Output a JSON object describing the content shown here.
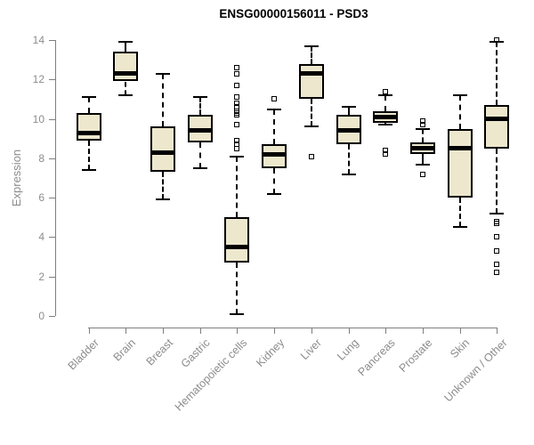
{
  "colors": {
    "box_fill": "#EDE7CD",
    "box_border": "#000000",
    "axis_line": "#7f7f7f",
    "axis_text": "#8c8c8c",
    "title_text": "#000000",
    "background": "#ffffff"
  },
  "chart_data": {
    "type": "boxplot",
    "title": "ENSG00000156011 - PSD3",
    "ylabel": "Expression",
    "xlabel": "",
    "ylim": [
      0,
      14
    ],
    "yticks": [
      0,
      2,
      4,
      6,
      8,
      10,
      12,
      14
    ],
    "grid": false,
    "legend": "none",
    "categories": [
      "Bladder",
      "Brain",
      "Breast",
      "Gastric",
      "Hematopoietic cells",
      "Kidney",
      "Liver",
      "Lung",
      "Pancreas",
      "Prostate",
      "Skin",
      "Unknown / Other"
    ],
    "series": [
      {
        "name": "Bladder",
        "whisker_low": 7.4,
        "q1": 8.9,
        "median": 9.3,
        "q3": 10.3,
        "whisker_high": 11.1,
        "outliers": []
      },
      {
        "name": "Brain",
        "whisker_low": 11.2,
        "q1": 11.9,
        "median": 12.3,
        "q3": 13.4,
        "whisker_high": 13.9,
        "outliers": []
      },
      {
        "name": "Breast",
        "whisker_low": 5.9,
        "q1": 7.3,
        "median": 8.3,
        "q3": 9.6,
        "whisker_high": 12.3,
        "outliers": []
      },
      {
        "name": "Gastric",
        "whisker_low": 7.5,
        "q1": 8.8,
        "median": 9.4,
        "q3": 10.2,
        "whisker_high": 11.1,
        "outliers": []
      },
      {
        "name": "Hematopoietic cells",
        "whisker_low": 0.1,
        "q1": 2.7,
        "median": 3.5,
        "q3": 5.0,
        "whisker_high": 8.1,
        "outliers": [
          12.6,
          12.3,
          11.7,
          11.1,
          10.8,
          10.6,
          10.4,
          10.3,
          10.2,
          9.7,
          8.9,
          8.7,
          8.5
        ]
      },
      {
        "name": "Kidney",
        "whisker_low": 6.2,
        "q1": 7.5,
        "median": 8.2,
        "q3": 8.7,
        "whisker_high": 10.5,
        "outliers": [
          11.0
        ]
      },
      {
        "name": "Liver",
        "whisker_low": 9.6,
        "q1": 11.0,
        "median": 12.3,
        "q3": 12.8,
        "whisker_high": 13.7,
        "outliers": [
          8.1
        ]
      },
      {
        "name": "Lung",
        "whisker_low": 7.2,
        "q1": 8.7,
        "median": 9.4,
        "q3": 10.2,
        "whisker_high": 10.6,
        "outliers": []
      },
      {
        "name": "Pancreas",
        "whisker_low": 9.7,
        "q1": 9.8,
        "median": 10.1,
        "q3": 10.4,
        "whisker_high": 11.2,
        "outliers": [
          11.4,
          8.4,
          8.2
        ]
      },
      {
        "name": "Prostate",
        "whisker_low": 7.7,
        "q1": 8.2,
        "median": 8.5,
        "q3": 8.8,
        "whisker_high": 9.5,
        "outliers": [
          9.9,
          9.7,
          7.2
        ]
      },
      {
        "name": "Skin",
        "whisker_low": 4.5,
        "q1": 6.0,
        "median": 8.5,
        "q3": 9.5,
        "whisker_high": 11.2,
        "outliers": []
      },
      {
        "name": "Unknown / Other",
        "whisker_low": 5.2,
        "q1": 8.5,
        "median": 10.0,
        "q3": 10.7,
        "whisker_high": 13.9,
        "outliers": [
          14.0,
          4.8,
          4.7,
          4.0,
          3.3,
          2.6,
          2.2
        ]
      }
    ]
  }
}
